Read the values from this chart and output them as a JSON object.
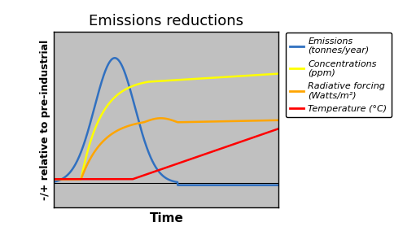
{
  "title": "Emissions reductions",
  "xlabel": "Time",
  "ylabel": "-/+ relative to pre-industrial",
  "background_color": "#c0c0c0",
  "outer_background": "#ffffff",
  "legend_entries": [
    {
      "label": "Emissions\n(tonnes/year)",
      "color": "#3070c0"
    },
    {
      "label": "Concentrations\n(ppm)",
      "color": "#ffff00"
    },
    {
      "label": "Radiative forcing\n(Watts/m²)",
      "color": "#ffa500"
    },
    {
      "label": "Temperature (°C)",
      "color": "#ff0000"
    }
  ],
  "title_fontsize": 13,
  "axis_label_fontsize": 9,
  "legend_fontsize": 8,
  "zero_line_color": "#000000",
  "figsize": [
    5.11,
    3.0
  ],
  "dpi": 100
}
